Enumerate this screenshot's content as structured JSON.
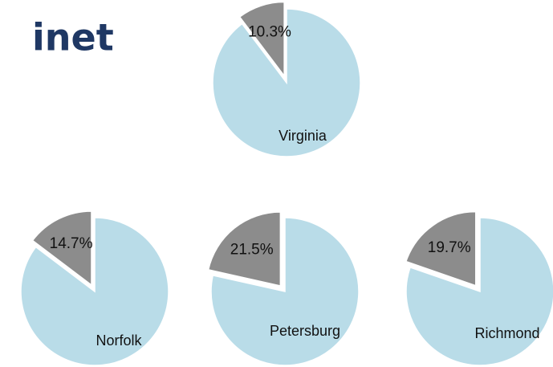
{
  "header": {
    "title": "inet"
  },
  "chart_data": [
    {
      "type": "pie",
      "title": "Virginia",
      "values": [
        10.3,
        89.7
      ],
      "value_labels": [
        "10.3%",
        null
      ],
      "colors": [
        "#8c8c8c",
        "#b9dce8"
      ]
    },
    {
      "type": "pie",
      "title": "Norfolk",
      "values": [
        14.7,
        85.3
      ],
      "value_labels": [
        "14.7%",
        null
      ],
      "colors": [
        "#8c8c8c",
        "#b9dce8"
      ]
    },
    {
      "type": "pie",
      "title": "Petersburg",
      "values": [
        21.5,
        78.5
      ],
      "value_labels": [
        "21.5%",
        null
      ],
      "colors": [
        "#8c8c8c",
        "#b9dce8"
      ]
    },
    {
      "type": "pie",
      "title": "Richmond",
      "values": [
        19.7,
        80.3
      ],
      "value_labels": [
        "19.7%",
        null
      ],
      "colors": [
        "#8c8c8c",
        "#b9dce8"
      ]
    }
  ]
}
